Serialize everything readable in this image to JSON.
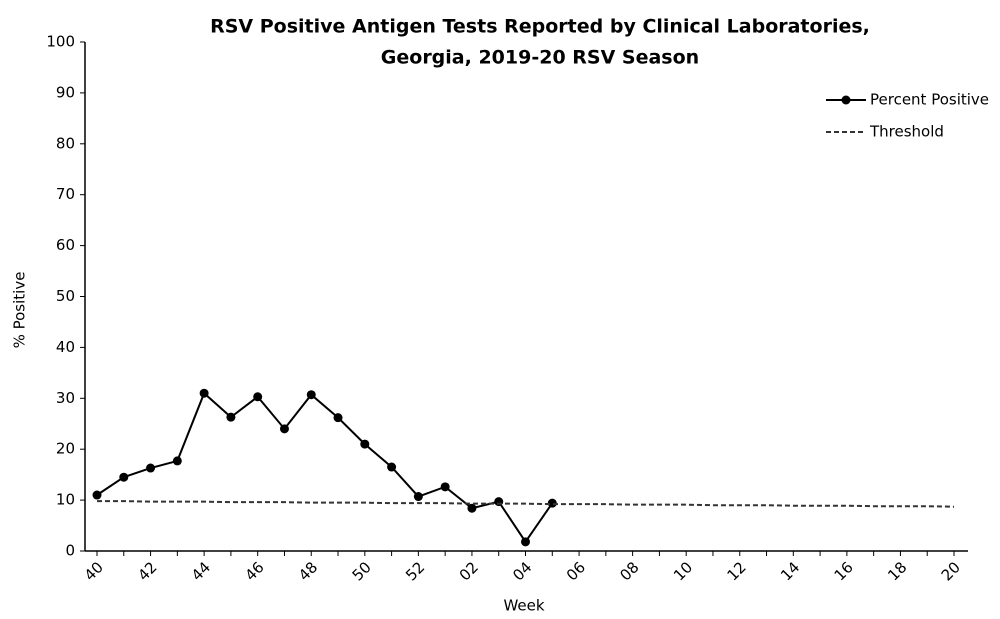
{
  "chart_data": {
    "type": "line",
    "title": [
      "RSV Positive Antigen Tests Reported by Clinical Laboratories,",
      "Georgia, 2019-20 RSV Season"
    ],
    "x_label": "Week",
    "y_label": "% Positive",
    "categories": [
      "40",
      null,
      "42",
      null,
      "44",
      null,
      "46",
      null,
      "48",
      null,
      "50",
      null,
      "52",
      null,
      "02",
      null,
      "04",
      null,
      "06",
      null,
      "08",
      null,
      "10",
      null,
      "12",
      null,
      "14",
      null,
      "16",
      null,
      "18",
      null,
      "20"
    ],
    "series": [
      {
        "name": "Percent Positive",
        "color": "#000000",
        "markers": true,
        "dashed": false,
        "values": [
          11,
          14.5,
          16.3,
          17.7,
          31,
          26.3,
          30.3,
          24,
          30.7,
          26.2,
          21,
          16.5,
          10.7,
          12.6,
          8.4,
          9.7,
          1.8,
          9.4,
          null,
          null,
          null,
          null,
          null,
          null,
          null,
          null,
          null,
          null,
          null,
          null,
          null,
          null,
          null
        ]
      },
      {
        "name": "Threshold",
        "color": "#333333",
        "markers": false,
        "dashed": true,
        "values": [
          9.8,
          9.8,
          9.7,
          9.7,
          9.7,
          9.6,
          9.6,
          9.6,
          9.5,
          9.5,
          9.5,
          9.4,
          9.4,
          9.4,
          9.3,
          9.3,
          9.3,
          9.2,
          9.2,
          9.2,
          9.1,
          9.1,
          9.1,
          9.0,
          9.0,
          9.0,
          8.9,
          8.9,
          8.9,
          8.8,
          8.8,
          8.8,
          8.7
        ]
      }
    ],
    "ylim": [
      0,
      100
    ],
    "yticks": [
      0,
      10,
      20,
      30,
      40,
      50,
      60,
      70,
      80,
      90,
      100
    ],
    "grid": false,
    "legend": "top-right"
  }
}
